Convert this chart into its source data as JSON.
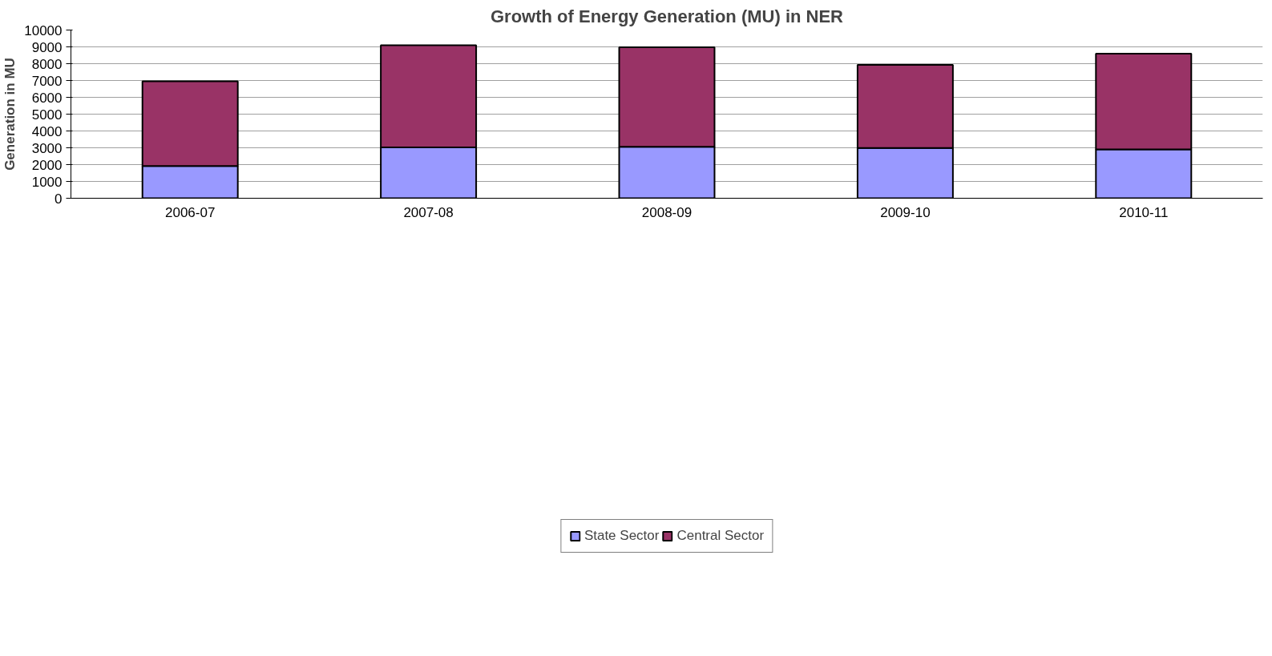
{
  "chart_data": {
    "type": "bar",
    "title": "Growth of Energy Generation (MU) in NER",
    "ylabel": "Generation in MU",
    "stacked": true,
    "categories": [
      "2006-07",
      "2007-08",
      "2008-09",
      "2009-10",
      "2010-11"
    ],
    "series": [
      {
        "name": "State Sector",
        "color": "#9999ff",
        "values": [
          1920,
          3020,
          3060,
          2990,
          2900
        ]
      },
      {
        "name": "Central Sector",
        "color": "#993366",
        "values": [
          5030,
          6080,
          5920,
          4940,
          5690
        ]
      }
    ],
    "ylim": [
      0,
      10000
    ],
    "yticks": [
      0,
      1000,
      2000,
      3000,
      4000,
      5000,
      6000,
      7000,
      8000,
      9000,
      10000
    ],
    "grid": "y",
    "legend": "bottom"
  }
}
